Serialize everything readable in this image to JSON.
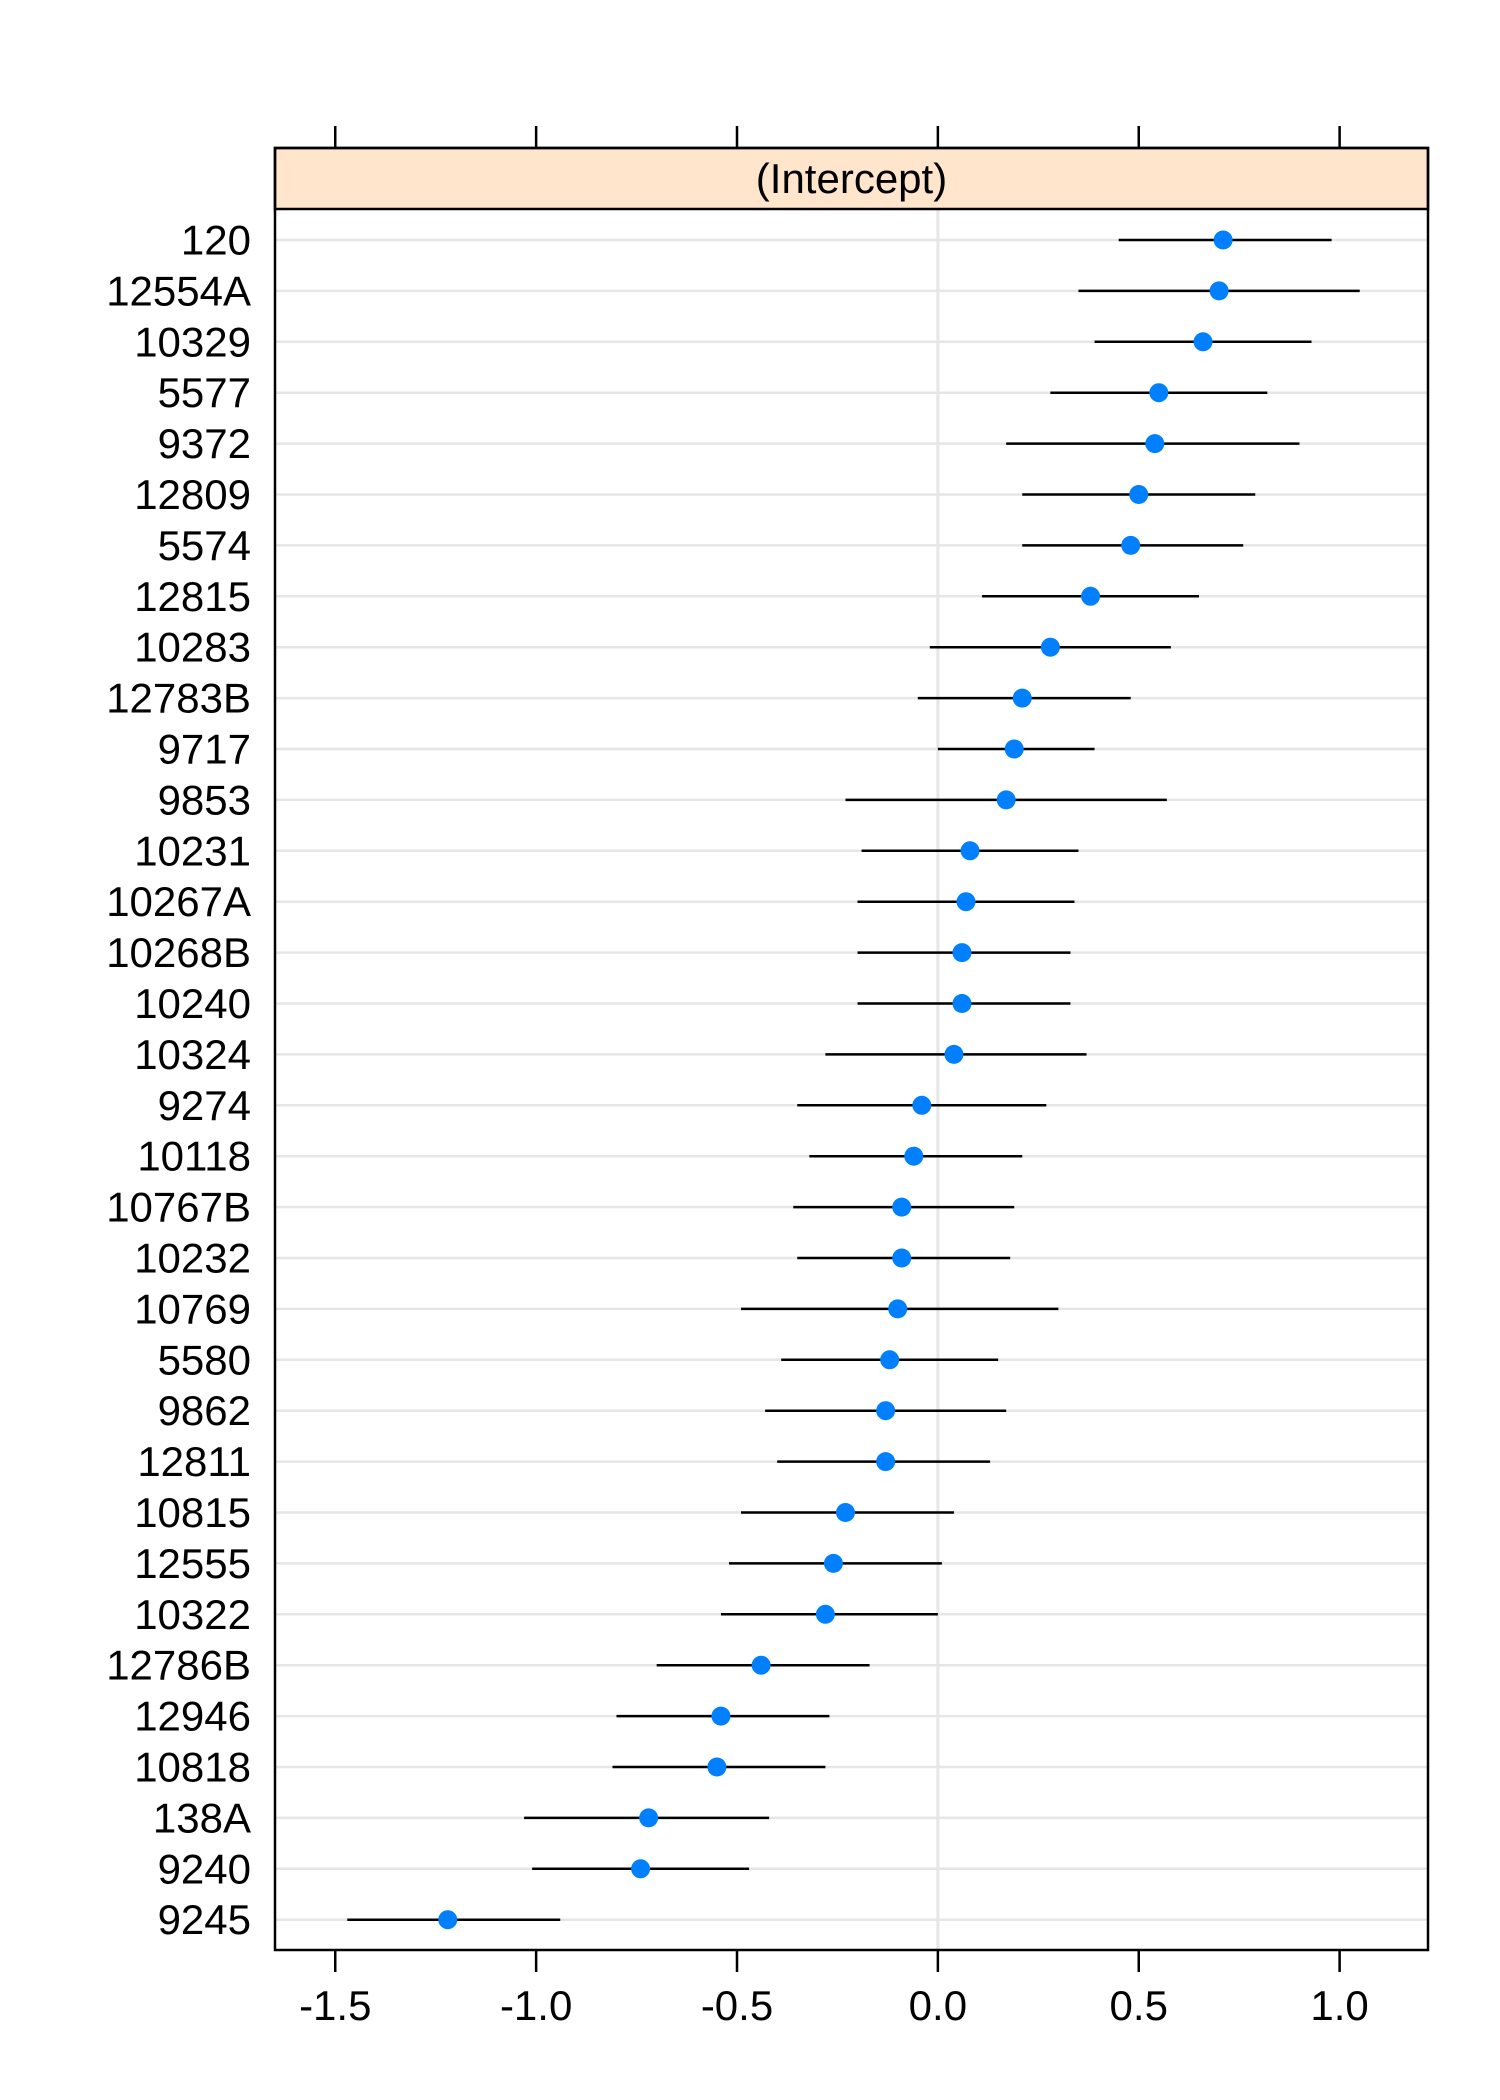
{
  "chart_data": {
    "type": "scatter",
    "subtype": "dotplot-with-intervals",
    "strip_label": "(Intercept)",
    "xlabel": "",
    "ylabel": "",
    "xlim": [
      -1.65,
      1.22
    ],
    "x_ticks": [
      -1.5,
      -1.0,
      -0.5,
      0.0,
      0.5,
      1.0
    ],
    "x_tick_labels": [
      "-1.5",
      "-1.0",
      "-0.5",
      "0.0",
      "0.5",
      "1.0"
    ],
    "reference_line": 0.0,
    "grid": "horizontal",
    "colors": {
      "point": "#0080ff",
      "interval": "#000000",
      "strip": "#ffe5cc",
      "gridline": "#e6e6e6"
    },
    "categories": [
      "120",
      "12554A",
      "10329",
      "5577",
      "9372",
      "12809",
      "5574",
      "12815",
      "10283",
      "12783B",
      "9717",
      "9853",
      "10231",
      "10267A",
      "10268B",
      "10240",
      "10324",
      "9274",
      "10118",
      "10767B",
      "10232",
      "10769",
      "5580",
      "9862",
      "12811",
      "10815",
      "12555",
      "10322",
      "12786B",
      "12946",
      "10818",
      "138A",
      "9240",
      "9245"
    ],
    "series": [
      {
        "estimate": [
          0.71,
          0.7,
          0.66,
          0.55,
          0.54,
          0.5,
          0.48,
          0.38,
          0.28,
          0.21,
          0.19,
          0.17,
          0.08,
          0.07,
          0.06,
          0.06,
          0.04,
          -0.04,
          -0.06,
          -0.09,
          -0.09,
          -0.1,
          -0.12,
          -0.13,
          -0.13,
          -0.23,
          -0.26,
          -0.28,
          -0.44,
          -0.54,
          -0.55,
          -0.72,
          -0.74,
          -1.22
        ],
        "lower": [
          0.45,
          0.35,
          0.39,
          0.28,
          0.17,
          0.21,
          0.21,
          0.11,
          -0.02,
          -0.05,
          0.0,
          -0.23,
          -0.19,
          -0.2,
          -0.2,
          -0.2,
          -0.28,
          -0.35,
          -0.32,
          -0.36,
          -0.35,
          -0.49,
          -0.39,
          -0.43,
          -0.4,
          -0.49,
          -0.52,
          -0.54,
          -0.7,
          -0.8,
          -0.81,
          -1.03,
          -1.01,
          -1.47
        ],
        "upper": [
          0.98,
          1.05,
          0.93,
          0.82,
          0.9,
          0.79,
          0.76,
          0.65,
          0.58,
          0.48,
          0.39,
          0.57,
          0.35,
          0.34,
          0.33,
          0.33,
          0.37,
          0.27,
          0.21,
          0.19,
          0.18,
          0.3,
          0.15,
          0.17,
          0.13,
          0.04,
          0.01,
          0.0,
          -0.17,
          -0.27,
          -0.28,
          -0.42,
          -0.47,
          -0.94
        ]
      }
    ]
  }
}
